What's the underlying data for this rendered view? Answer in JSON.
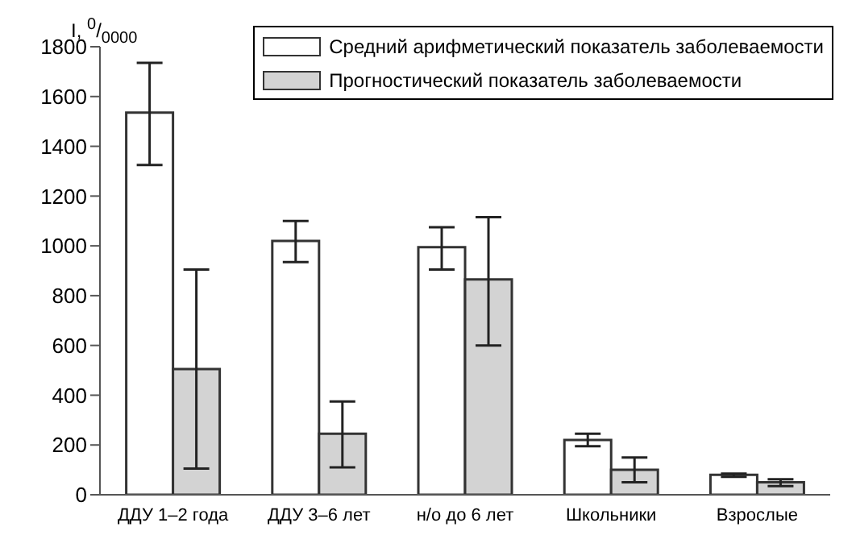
{
  "chart_data": {
    "type": "bar",
    "ylabel": "I, $^{0}$/$_{0000}$",
    "categories": [
      "ДДУ 1–2 года",
      "ДДУ 3–6 лет",
      "н/о до 6 лет",
      "Школьники",
      "Взрослые"
    ],
    "series": [
      {
        "name": "Средний арифметический показатель заболеваемости",
        "color": "#ffffff",
        "values": [
          1535,
          1020,
          995,
          220,
          80
        ],
        "errors": [
          [
            1325,
            1735
          ],
          [
            935,
            1100
          ],
          [
            905,
            1075
          ],
          [
            195,
            245
          ],
          [
            72,
            85
          ]
        ]
      },
      {
        "name": "Прогностический показатель заболеваемости",
        "color": "#d3d3d3",
        "values": [
          505,
          245,
          865,
          100,
          50
        ],
        "errors": [
          [
            105,
            905
          ],
          [
            110,
            375
          ],
          [
            600,
            1115
          ],
          [
            50,
            150
          ],
          [
            35,
            62
          ]
        ]
      }
    ],
    "ylim": [
      0,
      1800
    ],
    "yticks": [
      0,
      200,
      400,
      600,
      800,
      1000,
      1200,
      1400,
      1600,
      1800
    ],
    "grid": false,
    "legend": "top right"
  }
}
